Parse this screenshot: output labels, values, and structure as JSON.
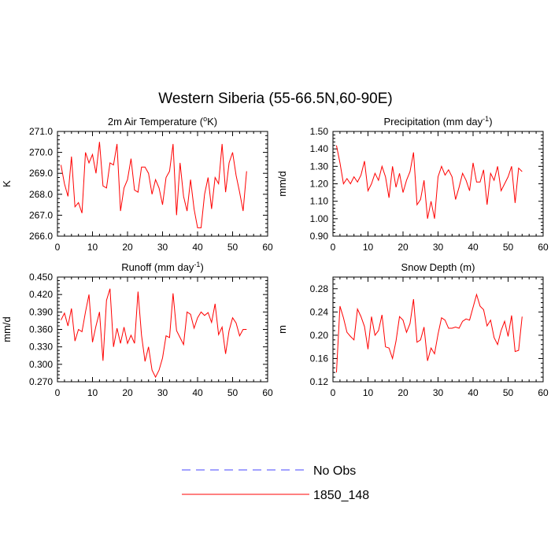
{
  "figure_title": "Western Siberia (55-66.5N,60-90E)",
  "legend": {
    "entries": [
      {
        "label": "No Obs",
        "color": "#4444ff",
        "dashed": true
      },
      {
        "label": "1850_148",
        "color": "#ff0000",
        "dashed": false
      }
    ]
  },
  "chart_data": [
    {
      "type": "line",
      "title_main": "2m Air Temperature (",
      "title_sup": "o",
      "title_end": "K)",
      "ylabel": "K",
      "xlim": [
        0,
        60
      ],
      "ylim": [
        266.0,
        271.0
      ],
      "xticks": [
        0,
        10,
        20,
        30,
        40,
        50,
        60
      ],
      "yticks": [
        266.0,
        267.0,
        268.0,
        269.0,
        270.0,
        271.0
      ],
      "yticklabels": [
        "266.0",
        "267.0",
        "268.0",
        "269.0",
        "270.0",
        "271.0"
      ],
      "series": [
        {
          "color": "#ff0000",
          "x_start": 1,
          "values": [
            269.4,
            268.5,
            267.9,
            269.8,
            267.4,
            267.6,
            267.1,
            270.0,
            269.5,
            269.9,
            269.0,
            270.5,
            268.4,
            268.3,
            269.5,
            269.4,
            270.4,
            267.2,
            268.3,
            268.7,
            269.7,
            268.2,
            268.1,
            269.3,
            269.3,
            269.0,
            268.0,
            268.7,
            268.3,
            267.5,
            268.8,
            269.1,
            270.4,
            267.0,
            269.5,
            267.9,
            267.2,
            268.7,
            267.3,
            266.4,
            266.4,
            268.0,
            268.8,
            267.3,
            268.8,
            268.5,
            270.4,
            268.1,
            269.5,
            270.0,
            268.9,
            268.1,
            267.2,
            269.1
          ]
        }
      ]
    },
    {
      "type": "line",
      "title_main": "Precipitation (mm day",
      "title_sup": "-1",
      "title_end": ")",
      "ylabel": "mm/d",
      "xlim": [
        0,
        60
      ],
      "ylim": [
        0.9,
        1.5
      ],
      "xticks": [
        0,
        10,
        20,
        30,
        40,
        50,
        60
      ],
      "yticks": [
        0.9,
        1.0,
        1.1,
        1.2,
        1.3,
        1.4,
        1.5
      ],
      "yticklabels": [
        "0.90",
        "1.00",
        "1.10",
        "1.20",
        "1.30",
        "1.40",
        "1.50"
      ],
      "series": [
        {
          "color": "#ff0000",
          "x_start": 1,
          "values": [
            1.42,
            1.32,
            1.2,
            1.23,
            1.2,
            1.24,
            1.21,
            1.25,
            1.33,
            1.16,
            1.2,
            1.26,
            1.22,
            1.3,
            1.24,
            1.12,
            1.3,
            1.18,
            1.26,
            1.15,
            1.22,
            1.27,
            1.38,
            1.08,
            1.11,
            1.22,
            1.0,
            1.1,
            1.0,
            1.24,
            1.3,
            1.25,
            1.28,
            1.24,
            1.11,
            1.18,
            1.26,
            1.22,
            1.16,
            1.32,
            1.21,
            1.21,
            1.28,
            1.08,
            1.26,
            1.22,
            1.3,
            1.16,
            1.2,
            1.24,
            1.3,
            1.09,
            1.29,
            1.27
          ]
        }
      ]
    },
    {
      "type": "line",
      "title_main": "Runoff (mm day",
      "title_sup": "-1",
      "title_end": ")",
      "ylabel": "mm/d",
      "xlim": [
        0,
        60
      ],
      "ylim": [
        0.27,
        0.45
      ],
      "xticks": [
        0,
        10,
        20,
        30,
        40,
        50,
        60
      ],
      "yticks": [
        0.27,
        0.3,
        0.33,
        0.36,
        0.39,
        0.42,
        0.45
      ],
      "yticklabels": [
        "0.270",
        "0.300",
        "0.330",
        "0.360",
        "0.390",
        "0.420",
        "0.450"
      ],
      "series": [
        {
          "color": "#ff0000",
          "x_start": 1,
          "values": [
            0.376,
            0.388,
            0.366,
            0.396,
            0.34,
            0.36,
            0.356,
            0.39,
            0.42,
            0.338,
            0.366,
            0.39,
            0.306,
            0.41,
            0.43,
            0.33,
            0.362,
            0.336,
            0.364,
            0.336,
            0.35,
            0.336,
            0.425,
            0.35,
            0.305,
            0.33,
            0.29,
            0.278,
            0.29,
            0.311,
            0.349,
            0.346,
            0.422,
            0.358,
            0.346,
            0.334,
            0.39,
            0.386,
            0.362,
            0.38,
            0.39,
            0.384,
            0.389,
            0.372,
            0.404,
            0.351,
            0.364,
            0.318,
            0.358,
            0.38,
            0.371,
            0.349,
            0.36,
            0.36
          ]
        }
      ]
    },
    {
      "type": "line",
      "title_main": "Snow Depth (m)",
      "title_sup": "",
      "title_end": "",
      "ylabel": "m",
      "xlim": [
        0,
        60
      ],
      "ylim": [
        0.12,
        0.3
      ],
      "xticks": [
        0,
        10,
        20,
        30,
        40,
        50,
        60
      ],
      "yticks": [
        0.12,
        0.16,
        0.2,
        0.24,
        0.28
      ],
      "yticklabels": [
        "0.12",
        "0.16",
        "0.20",
        "0.24",
        "0.28"
      ],
      "series": [
        {
          "color": "#ff0000",
          "x_start": 1,
          "values": [
            0.136,
            0.25,
            0.23,
            0.205,
            0.198,
            0.192,
            0.245,
            0.232,
            0.215,
            0.176,
            0.232,
            0.2,
            0.208,
            0.235,
            0.18,
            0.178,
            0.16,
            0.19,
            0.232,
            0.226,
            0.205,
            0.22,
            0.262,
            0.188,
            0.192,
            0.214,
            0.156,
            0.178,
            0.168,
            0.202,
            0.23,
            0.226,
            0.212,
            0.212,
            0.214,
            0.212,
            0.224,
            0.228,
            0.226,
            0.248,
            0.27,
            0.25,
            0.244,
            0.216,
            0.226,
            0.196,
            0.184,
            0.208,
            0.224,
            0.198,
            0.234,
            0.172,
            0.174,
            0.232
          ]
        }
      ]
    }
  ]
}
